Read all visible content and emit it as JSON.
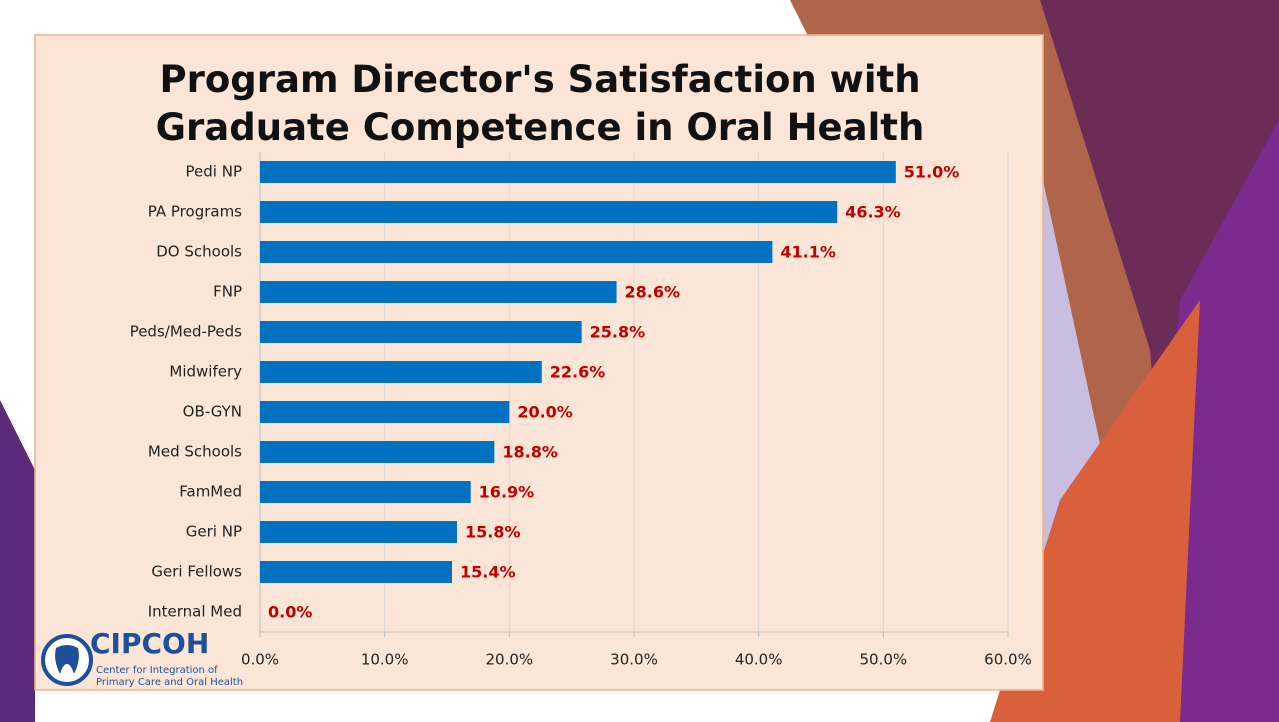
{
  "chart_data": {
    "type": "barh",
    "title": "Program Director's Satisfaction with Graduate Competence in Oral Health",
    "categories": [
      "Pedi NP",
      "PA Programs",
      "DO Schools",
      "FNP",
      "Peds/Med-Peds",
      "Midwifery",
      "OB-GYN",
      "Med Schools",
      "FamMed",
      "Geri NP",
      "Geri Fellows",
      "Internal Med"
    ],
    "values": [
      51.0,
      46.3,
      41.1,
      28.6,
      25.8,
      22.6,
      20.0,
      18.8,
      16.9,
      15.8,
      15.4,
      0.0
    ],
    "value_labels": [
      "51.0%",
      "46.3%",
      "41.1%",
      "28.6%",
      "25.8%",
      "22.6%",
      "20.0%",
      "18.8%",
      "16.9%",
      "15.8%",
      "15.4%",
      "0.0%"
    ],
    "color": "#0070c0",
    "label_color": "#c00000",
    "xlim": [
      0,
      60
    ],
    "xticks": [
      {
        "value": 0,
        "label": "0.0%"
      },
      {
        "value": 10,
        "label": "10.0%"
      },
      {
        "value": 20,
        "label": "20.0%"
      },
      {
        "value": 30,
        "label": "30.0%"
      },
      {
        "value": 40,
        "label": "40.0%"
      },
      {
        "value": 50,
        "label": "50.0%"
      },
      {
        "value": 60,
        "label": "60.0%"
      }
    ],
    "grid": true
  },
  "logo": {
    "name": "CIPCOH",
    "line1": "Center for Integration of",
    "line2": "Primary Care and Oral Health"
  }
}
